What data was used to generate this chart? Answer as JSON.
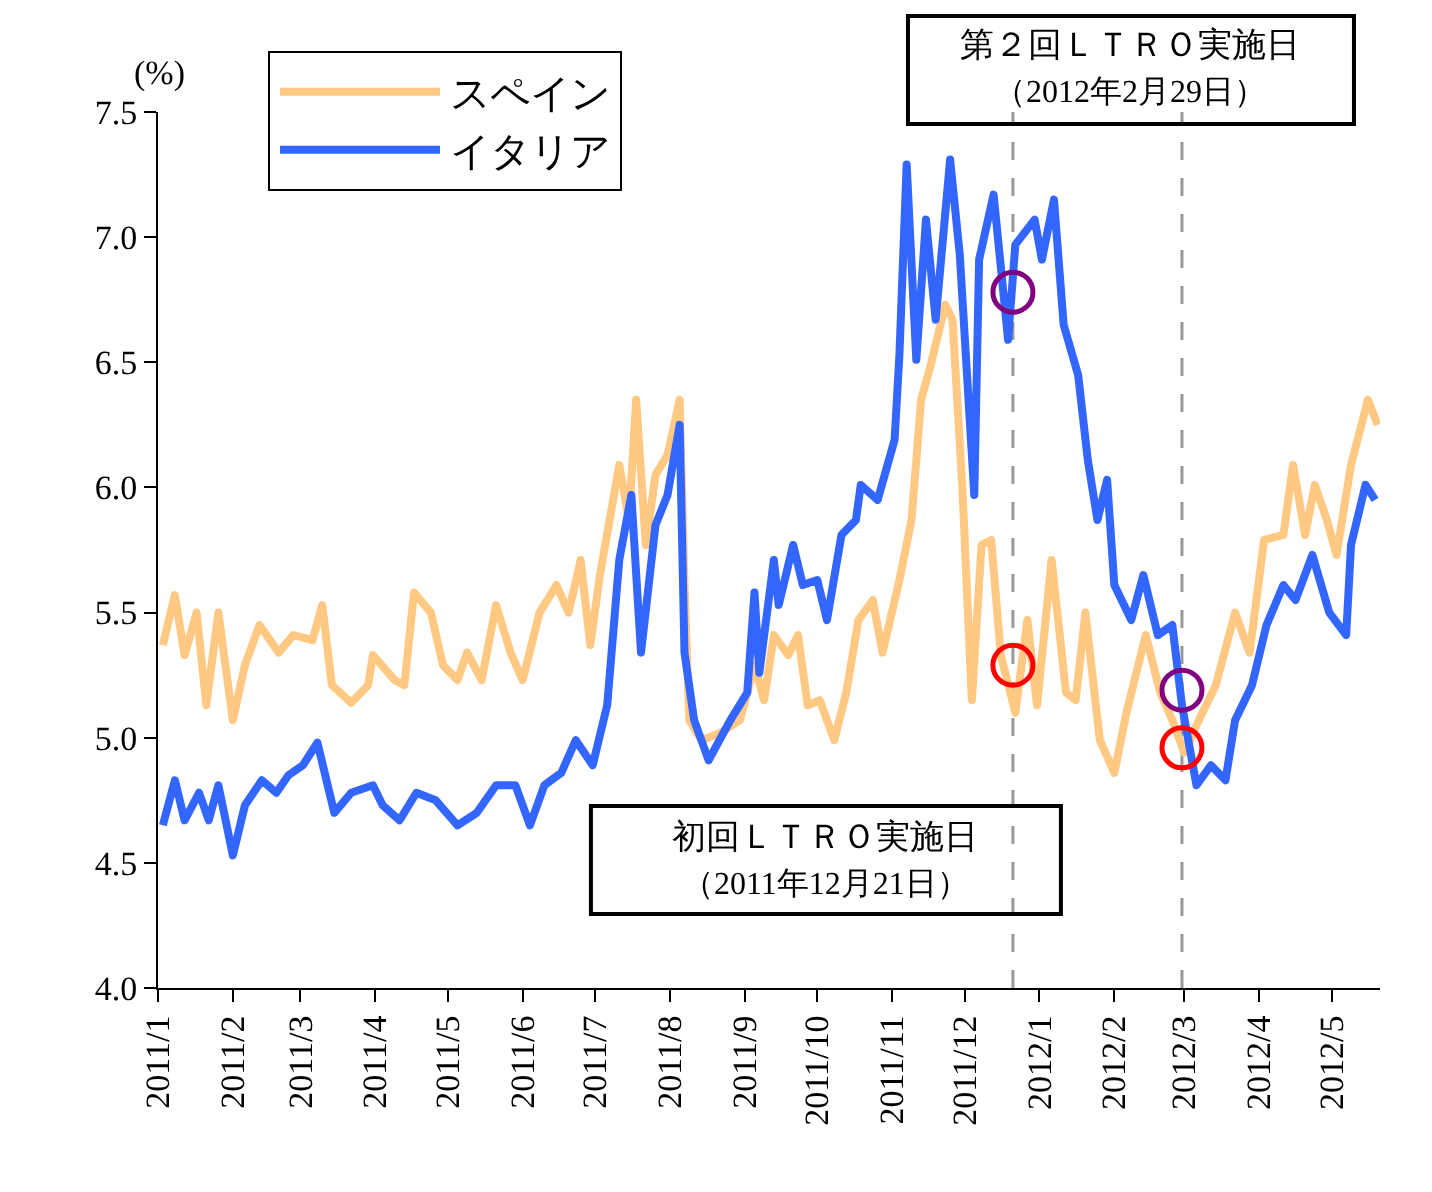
{
  "chart_data": {
    "type": "line",
    "ylabel": "(%)",
    "xlim": [
      "2011-01-01",
      "2012-05-21"
    ],
    "ylim": [
      4,
      7.5
    ],
    "yticks": [
      {
        "value": 4,
        "label": "4.0"
      },
      4.5,
      {
        "value": 5,
        "label": "5.0"
      },
      5.5,
      {
        "value": 6,
        "label": "6.0"
      },
      6.5,
      {
        "value": 7,
        "label": "7.0"
      },
      7.5
    ],
    "xticks": [
      {
        "value": "2011-01-01",
        "label": "2011/1"
      },
      {
        "value": "2011-02-01",
        "label": "2011/2"
      },
      {
        "value": "2011-03-01",
        "label": "2011/3"
      },
      {
        "value": "2011-04-01",
        "label": "2011/4"
      },
      {
        "value": "2011-05-01",
        "label": "2011/5"
      },
      {
        "value": "2011-06-01",
        "label": "2011/6"
      },
      {
        "value": "2011-07-01",
        "label": "2011/7"
      },
      {
        "value": "2011-08-01",
        "label": "2011/8"
      },
      {
        "value": "2011-09-01",
        "label": "2011/9"
      },
      {
        "value": "2011-10-01",
        "label": "2011/10"
      },
      {
        "value": "2011-11-01",
        "label": "2011/11"
      },
      {
        "value": "2011-12-01",
        "label": "2011/12"
      },
      {
        "value": "2012-01-01",
        "label": "2012/1"
      },
      {
        "value": "2012-02-01",
        "label": "2012/2"
      },
      {
        "value": "2012-03-01",
        "label": "2012/3"
      },
      {
        "value": "2012-04-01",
        "label": "2012/4"
      },
      {
        "value": "2012-05-01",
        "label": "2012/5"
      }
    ],
    "grid": false,
    "legend": "top left",
    "line_style": "solid",
    "series": [
      {
        "name": "スペイン",
        "color": "#ffc983",
        "x": [
          "2011-01-03",
          "2011-01-08",
          "2011-01-12",
          "2011-01-17",
          "2011-01-21",
          "2011-01-26",
          "2011-02-01",
          "2011-02-06",
          "2011-02-12",
          "2011-02-20",
          "2011-02-26",
          "2011-03-06",
          "2011-03-10",
          "2011-03-14",
          "2011-03-22",
          "2011-03-29",
          "2011-03-31",
          "2011-04-09",
          "2011-04-13",
          "2011-04-17",
          "2011-04-24",
          "2011-04-29",
          "2011-05-05",
          "2011-05-09",
          "2011-05-15",
          "2011-05-21",
          "2011-05-27",
          "2011-06-01",
          "2011-06-08",
          "2011-06-15",
          "2011-06-20",
          "2011-06-25",
          "2011-06-29",
          "2011-07-03",
          "2011-07-11",
          "2011-07-15",
          "2011-07-18",
          "2011-07-22",
          "2011-07-26",
          "2011-07-31",
          "2011-08-05",
          "2011-08-07",
          "2011-08-09",
          "2011-08-14",
          "2011-08-22",
          "2011-08-30",
          "2011-09-05",
          "2011-09-09",
          "2011-09-13",
          "2011-09-19",
          "2011-09-23",
          "2011-09-27",
          "2011-10-02",
          "2011-10-08",
          "2011-10-13",
          "2011-10-18",
          "2011-10-24",
          "2011-10-28",
          "2011-11-04",
          "2011-11-09",
          "2011-11-13",
          "2011-11-17",
          "2011-11-23",
          "2011-11-26",
          "2011-11-30",
          "2011-12-04",
          "2011-12-08",
          "2011-12-12",
          "2011-12-16",
          "2011-12-22",
          "2011-12-27",
          "2011-12-31",
          "2012-01-06",
          "2012-01-12",
          "2012-01-16",
          "2012-01-20",
          "2012-01-26",
          "2012-02-01",
          "2012-02-06",
          "2012-02-14",
          "2012-02-20",
          "2012-02-25",
          "2012-03-01",
          "2012-03-07",
          "2012-03-14",
          "2012-03-22",
          "2012-03-28",
          "2012-04-03",
          "2012-04-11",
          "2012-04-15",
          "2012-04-20",
          "2012-04-24",
          "2012-04-29",
          "2012-05-03",
          "2012-05-09",
          "2012-05-16",
          "2012-05-20"
        ],
        "values": [
          5.37,
          5.57,
          5.33,
          5.5,
          5.13,
          5.5,
          5.07,
          5.29,
          5.45,
          5.34,
          5.41,
          5.39,
          5.53,
          5.21,
          5.14,
          5.21,
          5.33,
          5.23,
          5.21,
          5.58,
          5.5,
          5.29,
          5.23,
          5.34,
          5.23,
          5.53,
          5.34,
          5.23,
          5.5,
          5.61,
          5.5,
          5.71,
          5.37,
          5.65,
          6.09,
          5.87,
          6.35,
          5.77,
          6.05,
          6.13,
          6.35,
          5.61,
          5.07,
          4.99,
          5.02,
          5.07,
          5.29,
          5.15,
          5.41,
          5.33,
          5.41,
          5.13,
          5.15,
          4.99,
          5.18,
          5.47,
          5.55,
          5.34,
          5.63,
          5.87,
          6.35,
          6.49,
          6.73,
          6.67,
          6.01,
          5.15,
          5.77,
          5.79,
          5.33,
          5.1,
          5.47,
          5.13,
          5.71,
          5.18,
          5.15,
          5.5,
          4.99,
          4.86,
          5.1,
          5.41,
          5.18,
          5.07,
          4.94,
          5.07,
          5.21,
          5.5,
          5.34,
          5.79,
          5.81,
          6.09,
          5.81,
          6.01,
          5.87,
          5.73,
          6.09,
          6.35,
          6.25
        ]
      },
      {
        "name": "イタリア",
        "color": "#3366ff",
        "x": [
          "2011-01-03",
          "2011-01-08",
          "2011-01-12",
          "2011-01-18",
          "2011-01-22",
          "2011-01-26",
          "2011-02-01",
          "2011-02-06",
          "2011-02-13",
          "2011-02-19",
          "2011-02-24",
          "2011-03-02",
          "2011-03-08",
          "2011-03-15",
          "2011-03-22",
          "2011-03-31",
          "2011-04-04",
          "2011-04-11",
          "2011-04-18",
          "2011-04-26",
          "2011-05-05",
          "2011-05-13",
          "2011-05-21",
          "2011-05-29",
          "2011-06-04",
          "2011-06-10",
          "2011-06-17",
          "2011-06-23",
          "2011-06-30",
          "2011-07-06",
          "2011-07-11",
          "2011-07-16",
          "2011-07-20",
          "2011-07-26",
          "2011-07-31",
          "2011-08-05",
          "2011-08-07",
          "2011-08-11",
          "2011-08-17",
          "2011-08-26",
          "2011-09-02",
          "2011-09-05",
          "2011-09-07",
          "2011-09-13",
          "2011-09-15",
          "2011-09-21",
          "2011-09-25",
          "2011-10-01",
          "2011-10-05",
          "2011-10-11",
          "2011-10-17",
          "2011-10-19",
          "2011-10-26",
          "2011-11-02",
          "2011-11-04",
          "2011-11-07",
          "2011-11-11",
          "2011-11-15",
          "2011-11-19",
          "2011-11-25",
          "2011-11-29",
          "2011-12-05",
          "2011-12-07",
          "2011-12-13",
          "2011-12-19",
          "2011-12-22",
          "2011-12-30",
          "2012-01-02",
          "2012-01-07",
          "2012-01-11",
          "2012-01-17",
          "2012-01-21",
          "2012-01-25",
          "2012-01-29",
          "2012-02-01",
          "2012-02-08",
          "2012-02-13",
          "2012-02-19",
          "2012-02-25",
          "2012-02-29",
          "2012-03-06",
          "2012-03-12",
          "2012-03-18",
          "2012-03-22",
          "2012-03-29",
          "2012-04-04",
          "2012-04-11",
          "2012-04-16",
          "2012-04-23",
          "2012-04-30",
          "2012-05-07",
          "2012-05-09",
          "2012-05-15",
          "2012-05-19"
        ],
        "values": [
          4.65,
          4.83,
          4.67,
          4.78,
          4.67,
          4.81,
          4.53,
          4.73,
          4.83,
          4.78,
          4.85,
          4.89,
          4.98,
          4.7,
          4.78,
          4.81,
          4.73,
          4.67,
          4.78,
          4.75,
          4.65,
          4.7,
          4.81,
          4.81,
          4.65,
          4.81,
          4.86,
          4.99,
          4.89,
          5.13,
          5.71,
          5.97,
          5.34,
          5.85,
          5.97,
          6.25,
          5.34,
          5.07,
          4.91,
          5.07,
          5.18,
          5.58,
          5.26,
          5.71,
          5.53,
          5.77,
          5.61,
          5.63,
          5.47,
          5.81,
          5.87,
          6.01,
          5.95,
          6.19,
          6.53,
          7.29,
          6.51,
          7.07,
          6.67,
          7.31,
          6.93,
          5.97,
          6.91,
          7.17,
          6.59,
          6.97,
          7.07,
          6.91,
          7.15,
          6.65,
          6.45,
          6.11,
          5.87,
          6.03,
          5.61,
          5.47,
          5.65,
          5.41,
          5.45,
          5.13,
          4.81,
          4.89,
          4.83,
          5.07,
          5.21,
          5.45,
          5.61,
          5.55,
          5.73,
          5.5,
          5.41,
          5.77,
          6.01,
          5.95
        ]
      },
      {
        "type": "scatter",
        "marker": "circle",
        "color": "#ff0000",
        "x": [
          "2011-12-21",
          "2012-02-29"
        ],
        "values": [
          5.29,
          4.96
        ]
      },
      {
        "type": "scatter",
        "marker": "circle",
        "color": "#800080",
        "x": [
          "2011-12-21",
          "2012-02-29"
        ],
        "values": [
          6.78,
          5.19
        ]
      }
    ],
    "ref_lines": [
      {
        "axis": "x",
        "value": "2011-12-21",
        "label": [
          "初回ＬＴＲＯ実施日",
          "（2011年12月21日）"
        ],
        "color": "#999999",
        "line_style": "dashed"
      },
      {
        "axis": "x",
        "value": "2012-02-29",
        "label": [
          "第２回ＬＴＲＯ実施日",
          "（2012年2月29日）"
        ],
        "color": "#999999",
        "line_style": "dashed"
      }
    ]
  }
}
